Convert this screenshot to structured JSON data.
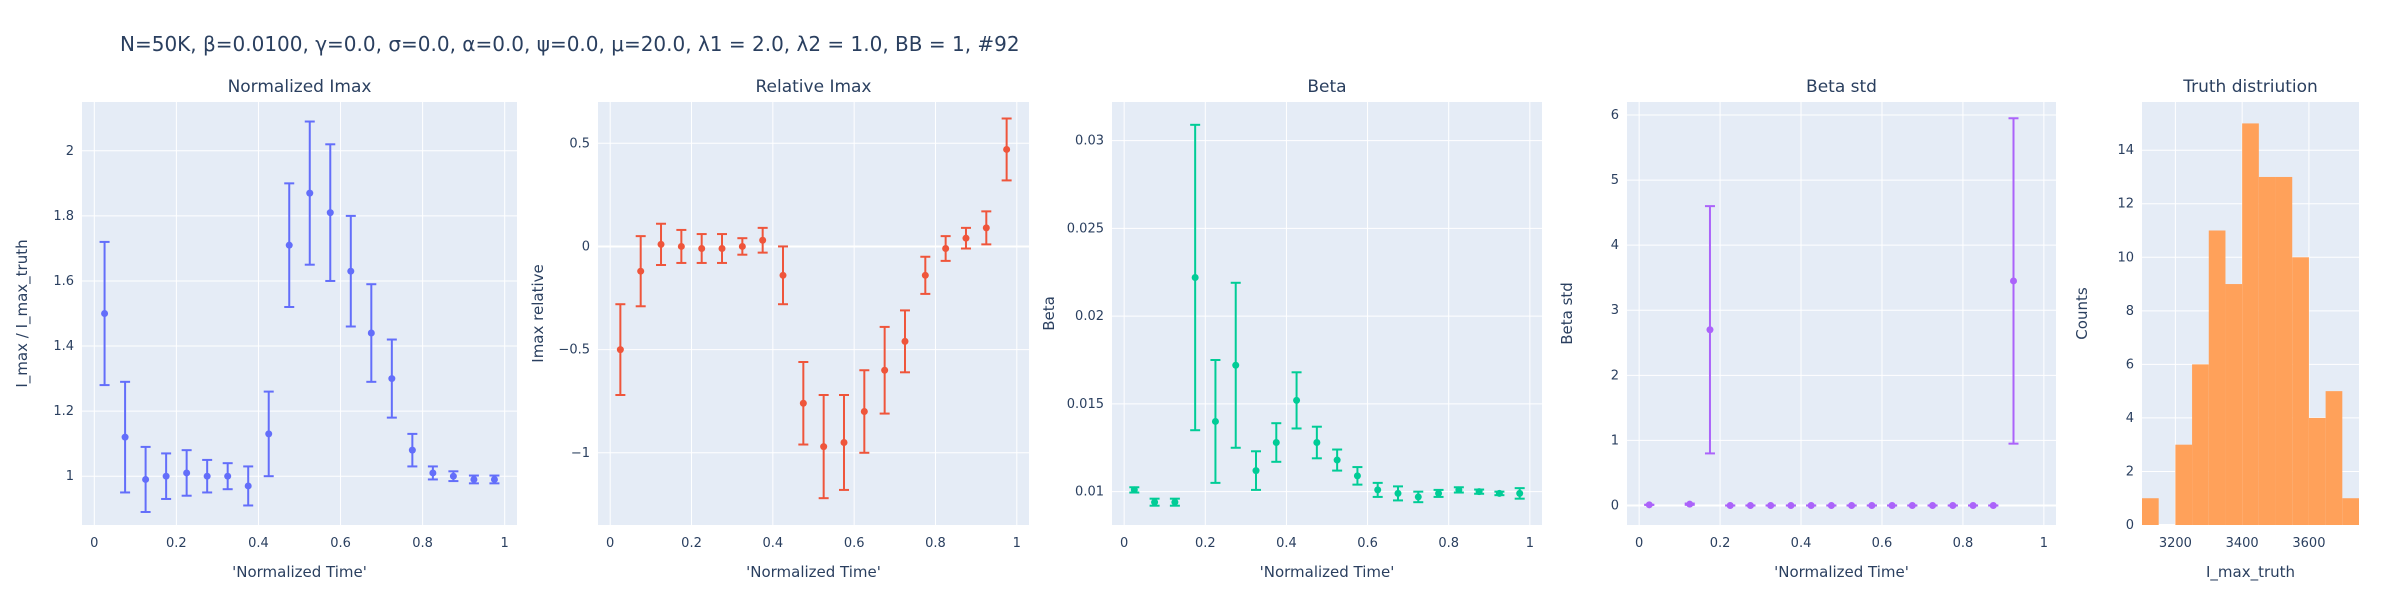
{
  "figure": {
    "title": "N=50K, β=0.0100, γ=0.0, σ=0.0,  α=0.0, ψ=0.0, μ=20.0, λ1 = 2.0, λ2 = 1.0, BB = 1, #92"
  },
  "colors": {
    "plot_bg": "#E5ECF6",
    "grid": "#ffffff",
    "text": "#2a3f5f",
    "normalized_imax": "#636EFA",
    "relative_imax": "#EF553B",
    "beta": "#00CC96",
    "beta_std": "#AB63FA",
    "truth_hist": "#FFA15A"
  },
  "chart_data": [
    {
      "type": "scatter",
      "title": "Normalized Imax",
      "xlabel": "'Normalized Time'",
      "ylabel": "I_max / I_max_truth",
      "xlim": [
        -0.03,
        1.03
      ],
      "ylim": [
        0.85,
        2.15
      ],
      "xticks": [
        0,
        0.2,
        0.4,
        0.6,
        0.8,
        1
      ],
      "xtick_labels": [
        "0",
        "0.2",
        "0.4",
        "0.6",
        "0.8",
        "1"
      ],
      "yticks": [
        1,
        1.2,
        1.4,
        1.6,
        1.8,
        2
      ],
      "ytick_labels": [
        "1",
        "1.2",
        "1.4",
        "1.6",
        "1.8",
        "2"
      ],
      "color_key": "normalized_imax",
      "x": [
        0.025,
        0.075,
        0.125,
        0.175,
        0.225,
        0.275,
        0.325,
        0.375,
        0.425,
        0.475,
        0.525,
        0.575,
        0.625,
        0.675,
        0.725,
        0.775,
        0.825,
        0.875,
        0.925,
        0.975
      ],
      "y": [
        1.5,
        1.12,
        0.99,
        1.0,
        1.01,
        1.0,
        1.0,
        0.97,
        1.13,
        1.71,
        1.87,
        1.81,
        1.63,
        1.44,
        1.3,
        1.08,
        1.01,
        1.0,
        0.99,
        0.99
      ],
      "err_plus": [
        0.22,
        0.17,
        0.1,
        0.07,
        0.07,
        0.05,
        0.04,
        0.06,
        0.13,
        0.19,
        0.22,
        0.21,
        0.17,
        0.15,
        0.12,
        0.05,
        0.02,
        0.015,
        0.012,
        0.012
      ],
      "err_minus": [
        0.22,
        0.17,
        0.1,
        0.07,
        0.07,
        0.05,
        0.04,
        0.06,
        0.13,
        0.19,
        0.22,
        0.21,
        0.17,
        0.15,
        0.12,
        0.05,
        0.02,
        0.015,
        0.012,
        0.012
      ]
    },
    {
      "type": "scatter",
      "title": "Relative Imax",
      "xlabel": "'Normalized Time'",
      "ylabel": "Imax relative",
      "xlim": [
        -0.03,
        1.03
      ],
      "ylim": [
        -1.35,
        0.7
      ],
      "xticks": [
        0,
        0.2,
        0.4,
        0.6,
        0.8,
        1
      ],
      "xtick_labels": [
        "0",
        "0.2",
        "0.4",
        "0.6",
        "0.8",
        "1"
      ],
      "yticks": [
        -1,
        -0.5,
        0,
        0.5
      ],
      "ytick_labels": [
        "−1",
        "−0.5",
        "0",
        "0.5"
      ],
      "color_key": "relative_imax",
      "x": [
        0.025,
        0.075,
        0.125,
        0.175,
        0.225,
        0.275,
        0.325,
        0.375,
        0.425,
        0.475,
        0.525,
        0.575,
        0.625,
        0.675,
        0.725,
        0.775,
        0.825,
        0.875,
        0.925,
        0.975
      ],
      "y": [
        -0.5,
        -0.12,
        0.01,
        0.0,
        -0.01,
        -0.01,
        0.0,
        0.03,
        -0.14,
        -0.76,
        -0.97,
        -0.95,
        -0.8,
        -0.6,
        -0.46,
        -0.14,
        -0.01,
        0.04,
        0.09,
        0.47
      ],
      "err_plus": [
        0.22,
        0.17,
        0.1,
        0.08,
        0.07,
        0.07,
        0.04,
        0.06,
        0.14,
        0.2,
        0.25,
        0.23,
        0.2,
        0.21,
        0.15,
        0.09,
        0.06,
        0.05,
        0.08,
        0.15
      ],
      "err_minus": [
        0.22,
        0.17,
        0.1,
        0.08,
        0.07,
        0.07,
        0.04,
        0.06,
        0.14,
        0.2,
        0.25,
        0.23,
        0.2,
        0.21,
        0.15,
        0.09,
        0.06,
        0.05,
        0.08,
        0.15
      ]
    },
    {
      "type": "scatter",
      "title": "Beta",
      "xlabel": "'Normalized Time'",
      "ylabel": "Beta",
      "xlim": [
        -0.03,
        1.03
      ],
      "ylim": [
        0.0081,
        0.0322
      ],
      "xticks": [
        0,
        0.2,
        0.4,
        0.6,
        0.8,
        1
      ],
      "xtick_labels": [
        "0",
        "0.2",
        "0.4",
        "0.6",
        "0.8",
        "1"
      ],
      "yticks": [
        0.01,
        0.015,
        0.02,
        0.025,
        0.03
      ],
      "ytick_labels": [
        "0.01",
        "0.015",
        "0.02",
        "0.025",
        "0.03"
      ],
      "color_key": "beta",
      "x": [
        0.025,
        0.075,
        0.125,
        0.175,
        0.225,
        0.275,
        0.325,
        0.375,
        0.425,
        0.475,
        0.525,
        0.575,
        0.625,
        0.675,
        0.725,
        0.775,
        0.825,
        0.875,
        0.925,
        0.975
      ],
      "y": [
        0.0101,
        0.0094,
        0.0094,
        0.0222,
        0.014,
        0.0172,
        0.0112,
        0.0128,
        0.0152,
        0.0128,
        0.0118,
        0.0109,
        0.0101,
        0.0099,
        0.0097,
        0.0099,
        0.0101,
        0.01,
        0.0099,
        0.0099
      ],
      "err_plus": [
        0.00015,
        0.0002,
        0.0002,
        0.0087,
        0.0035,
        0.0047,
        0.0011,
        0.0011,
        0.0016,
        0.0009,
        0.0006,
        0.0005,
        0.0004,
        0.0004,
        0.0003,
        0.0002,
        0.00015,
        0.00012,
        0.0001,
        0.0003
      ],
      "err_minus": [
        0.00015,
        0.0002,
        0.0002,
        0.0087,
        0.0035,
        0.0047,
        0.0011,
        0.0011,
        0.0016,
        0.0009,
        0.0006,
        0.0005,
        0.0004,
        0.0004,
        0.0003,
        0.0002,
        0.00015,
        0.00012,
        0.0001,
        0.0003
      ]
    },
    {
      "type": "scatter",
      "title": "Beta std",
      "xlabel": "'Normalized Time'",
      "ylabel": "Beta std",
      "xlim": [
        -0.03,
        1.03
      ],
      "ylim": [
        -0.3,
        6.2
      ],
      "xticks": [
        0,
        0.2,
        0.4,
        0.6,
        0.8,
        1
      ],
      "xtick_labels": [
        "0",
        "0.2",
        "0.4",
        "0.6",
        "0.8",
        "1"
      ],
      "yticks": [
        0,
        1,
        2,
        3,
        4,
        5,
        6
      ],
      "ytick_labels": [
        "0",
        "1",
        "2",
        "3",
        "4",
        "5",
        "6"
      ],
      "color_key": "beta_std",
      "x": [
        0.025,
        0.125,
        0.175,
        0.225,
        0.275,
        0.325,
        0.375,
        0.425,
        0.475,
        0.525,
        0.575,
        0.625,
        0.675,
        0.725,
        0.775,
        0.825,
        0.875,
        0.925
      ],
      "y": [
        0.01,
        0.02,
        2.7,
        0.0,
        0.0,
        0.0,
        0.0,
        0.0,
        0.0,
        0.0,
        0.0,
        0.0,
        0.0,
        0.0,
        0.0,
        0.0,
        0.0,
        3.45
      ],
      "err_plus": [
        0,
        0.01,
        1.9,
        0,
        0,
        0,
        0,
        0,
        0,
        0,
        0,
        0,
        0,
        0,
        0,
        0,
        0,
        2.5
      ],
      "err_minus": [
        0,
        0.01,
        1.9,
        0,
        0,
        0,
        0,
        0,
        0,
        0,
        0,
        0,
        0,
        0,
        0,
        0,
        0,
        2.5
      ]
    },
    {
      "type": "bar",
      "title": "Truth distriution",
      "xlabel": "I_max_truth",
      "ylabel": "Counts",
      "xlim": [
        3100,
        3750
      ],
      "ylim": [
        0,
        15.8
      ],
      "xticks": [
        3200,
        3400,
        3600
      ],
      "xtick_labels": [
        "3200",
        "3400",
        "3600"
      ],
      "yticks": [
        0,
        2,
        4,
        6,
        8,
        10,
        12,
        14
      ],
      "ytick_labels": [
        "0",
        "2",
        "4",
        "6",
        "8",
        "10",
        "12",
        "14"
      ],
      "color_key": "truth_hist",
      "bin_edges": [
        3100,
        3150,
        3200,
        3250,
        3300,
        3350,
        3400,
        3450,
        3500,
        3550,
        3600,
        3650,
        3700,
        3750
      ],
      "counts": [
        1,
        0,
        3,
        6,
        11,
        9,
        15,
        13,
        13,
        10,
        4,
        5,
        1
      ]
    }
  ]
}
